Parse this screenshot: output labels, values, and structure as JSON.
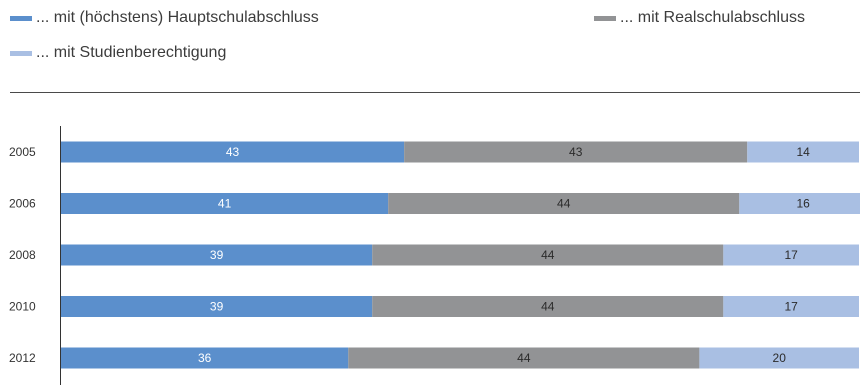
{
  "chart_data": {
    "type": "bar",
    "stacked": true,
    "orientation": "horizontal",
    "categories": [
      "2005",
      "2006",
      "2008",
      "2010",
      "2012"
    ],
    "series": [
      {
        "name": "... mit (höchstens) Hauptschulabschluss",
        "values": [
          43,
          41,
          39,
          39,
          36
        ],
        "color": "#5b8fcc",
        "label_color": "#ffffff"
      },
      {
        "name": "... mit Realschulabschluss",
        "values": [
          43,
          44,
          44,
          44,
          44
        ],
        "color": "#929395",
        "label_color": "#2b2b2b"
      },
      {
        "name": "... mit Studienberechtigung",
        "values": [
          14,
          16,
          17,
          17,
          20
        ],
        "color": "#a9bfe3",
        "label_color": "#2b2b2b"
      }
    ],
    "xlim": [
      0,
      100
    ],
    "grid": false,
    "legend": "top"
  }
}
